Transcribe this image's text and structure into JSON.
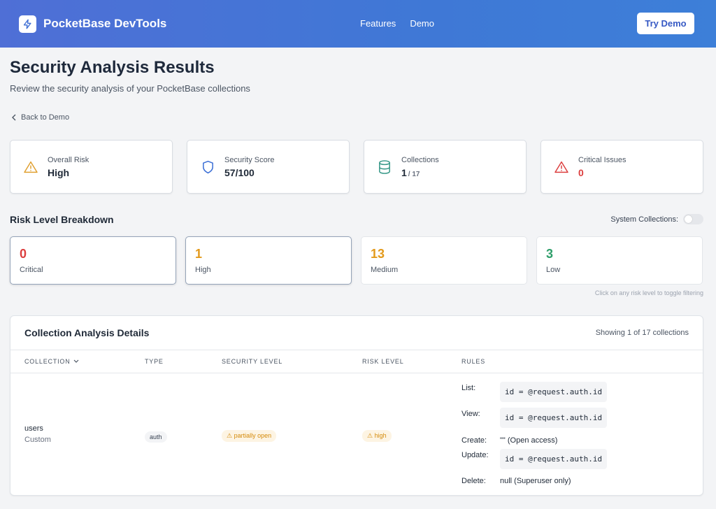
{
  "header": {
    "brand": "PocketBase DevTools",
    "nav": [
      "Features",
      "Demo"
    ],
    "cta": "Try Demo"
  },
  "page": {
    "title": "Security Analysis Results",
    "subtitle": "Review the security analysis of your PocketBase collections",
    "back": "Back to Demo"
  },
  "stats": [
    {
      "label": "Overall Risk",
      "value": "High",
      "icon": "warning-icon",
      "color": "#e0a030"
    },
    {
      "label": "Security Score",
      "value": "57/100",
      "icon": "shield-icon",
      "color": "#3b6fd6"
    },
    {
      "label": "Collections",
      "value": "1",
      "small": "/ 17",
      "icon": "database-icon",
      "color": "#3a9a8a"
    },
    {
      "label": "Critical Issues",
      "value": "0",
      "icon": "alert-icon",
      "color": "#dc3e3e"
    }
  ],
  "breakdown": {
    "title": "Risk Level Breakdown",
    "toggle_label": "System Collections:",
    "levels": [
      {
        "count": "0",
        "label": "Critical",
        "color": "#dc3e3e"
      },
      {
        "count": "1",
        "label": "High",
        "color": "#e39a1c"
      },
      {
        "count": "13",
        "label": "Medium",
        "color": "#e39a1c"
      },
      {
        "count": "3",
        "label": "Low",
        "color": "#2e9e6a"
      }
    ],
    "hint": "Click on any risk level to toggle filtering"
  },
  "table": {
    "title": "Collection Analysis Details",
    "count": "Showing 1 of 17 collections",
    "columns": [
      "COLLECTION",
      "TYPE",
      "SECURITY LEVEL",
      "RISK LEVEL",
      "RULES"
    ],
    "row": {
      "name": "users",
      "kind": "Custom",
      "type": "auth",
      "security": "partially open",
      "risk": "high",
      "rules": {
        "list_label": "List:",
        "list": "id = @request.auth.id",
        "view_label": "View:",
        "view": "id = @request.auth.id",
        "create_label": "Create:",
        "create": "\"\" (Open access)",
        "update_label": "Update:",
        "update": "id = @request.auth.id",
        "delete_label": "Delete:",
        "delete": "null (Superuser only)"
      }
    }
  }
}
